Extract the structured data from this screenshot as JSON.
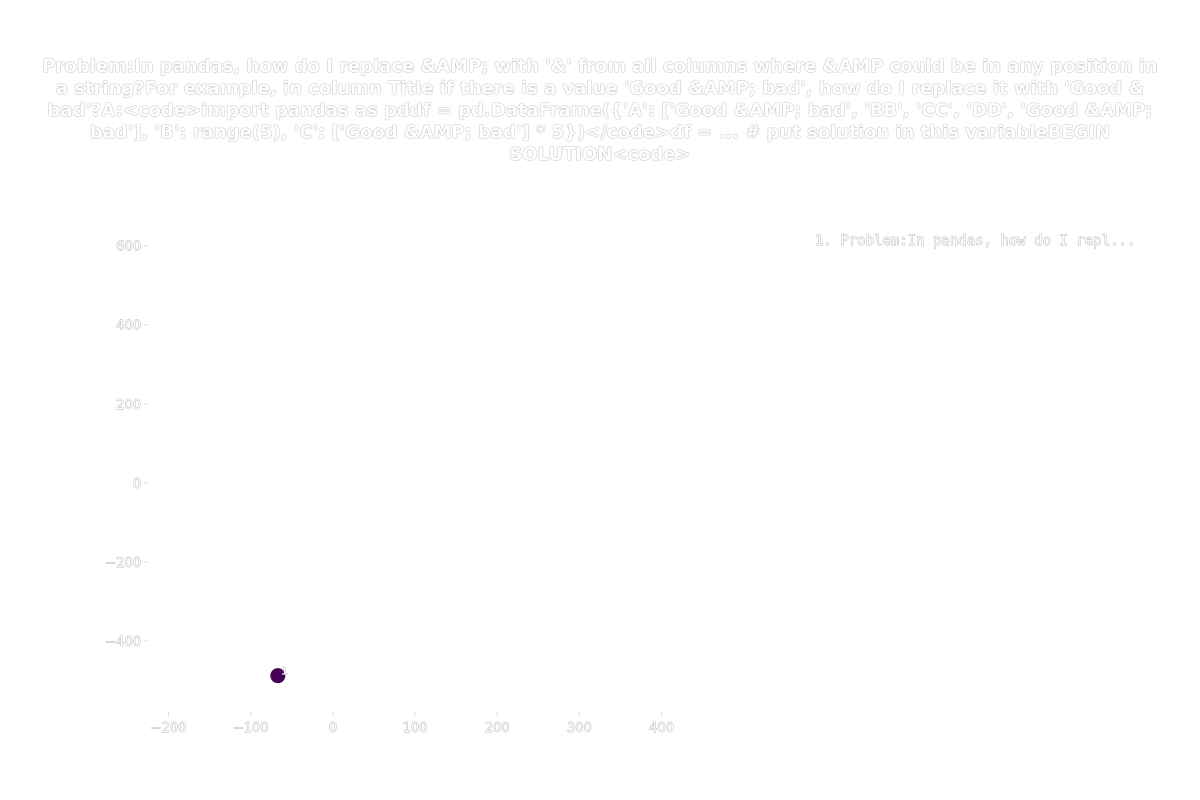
{
  "chart_data": {
    "type": "scatter",
    "title": "Problem:In pandas, how do I replace &AMP; with '&' from all columns where &AMP could be in any position in a string?For example, in column Title if there is a value 'Good &AMP; bad', how do I replace it with 'Good & bad'?A:<code>import pandas as pddf = pd.DataFrame({'A': ['Good &AMP; bad', 'BB', 'CC', 'DD', 'Good &AMP; bad'], 'B': range(5), 'C': ['Good &AMP; bad'] * 5})</code>df = ... # put solution in this variableBEGIN SOLUTION<code>",
    "xlabel": "",
    "ylabel": "",
    "xlim": [
      -225,
      465
    ],
    "ylim": [
      -580,
      660
    ],
    "x_ticks": [
      -200,
      -100,
      0,
      100,
      200,
      300,
      400
    ],
    "y_ticks": [
      -400,
      -200,
      0,
      200,
      400,
      600
    ],
    "x_tick_labels": [
      "−200",
      "−100",
      "0",
      "100",
      "200",
      "300",
      "400"
    ],
    "y_tick_labels": [
      "−400",
      "−200",
      "0",
      "200",
      "400",
      "600"
    ],
    "grid": false,
    "legend_position": "top-right",
    "legend": [
      "1. Problem:In pandas, how do I repl..."
    ],
    "points": [
      {
        "x": -67,
        "y": -488,
        "label": "1",
        "color": "#440154"
      }
    ]
  }
}
